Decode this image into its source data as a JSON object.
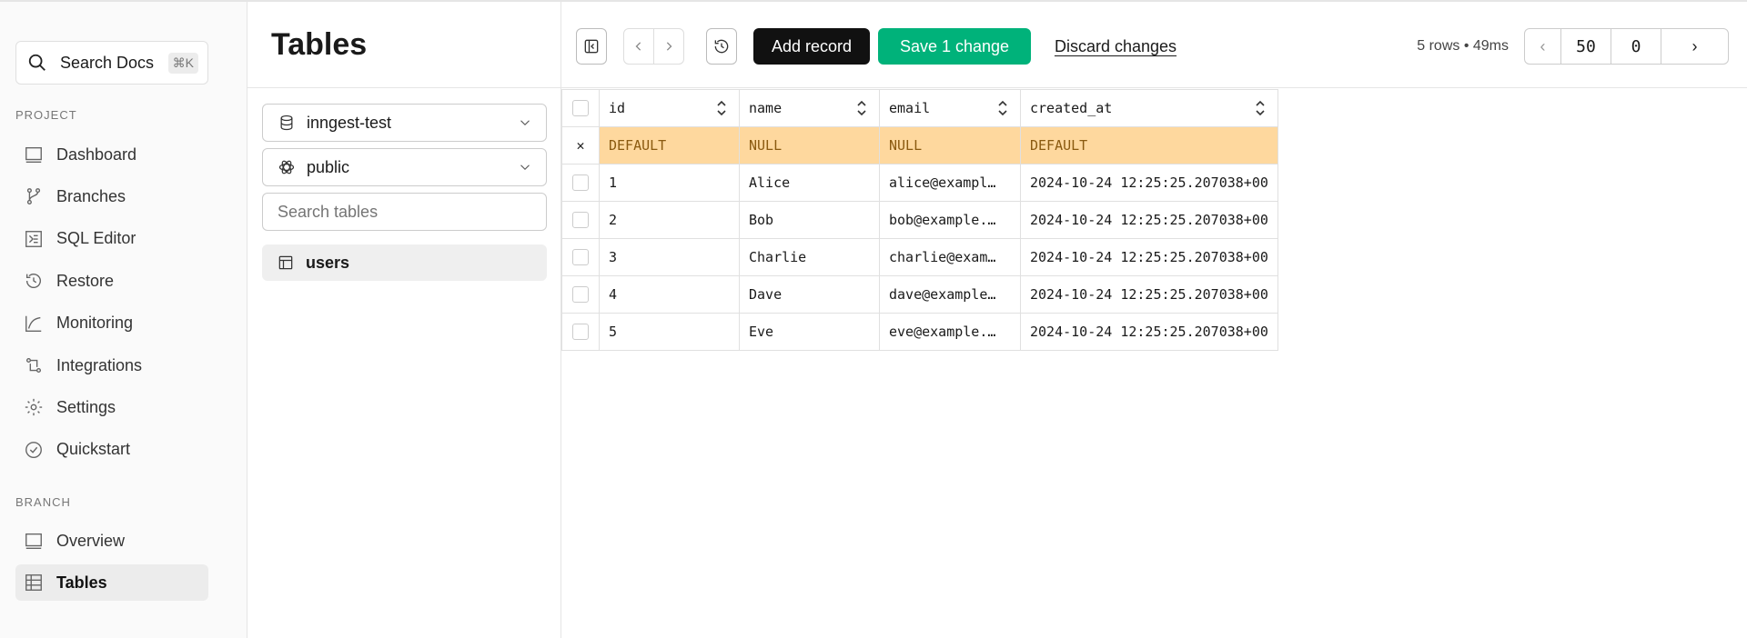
{
  "sidebar": {
    "search": {
      "label": "Search Docs",
      "shortcut": "⌘K"
    },
    "project_label": "PROJECT",
    "project_items": [
      {
        "label": "Dashboard",
        "icon": "dashboard-icon"
      },
      {
        "label": "Branches",
        "icon": "branch-icon"
      },
      {
        "label": "SQL Editor",
        "icon": "terminal-icon"
      },
      {
        "label": "Restore",
        "icon": "history-icon"
      },
      {
        "label": "Monitoring",
        "icon": "chart-icon"
      },
      {
        "label": "Integrations",
        "icon": "integrations-icon"
      },
      {
        "label": "Settings",
        "icon": "gear-icon"
      },
      {
        "label": "Quickstart",
        "icon": "check-circle-icon"
      }
    ],
    "branch_label": "BRANCH",
    "branch_items": [
      {
        "label": "Overview",
        "icon": "overview-icon"
      },
      {
        "label": "Tables",
        "icon": "table-icon",
        "selected": true
      }
    ]
  },
  "panel": {
    "title": "Tables",
    "database": "inngest-test",
    "schema": "public",
    "search_placeholder": "Search tables",
    "tables": [
      "users"
    ]
  },
  "toolbar": {
    "add_record": "Add record",
    "save": "Save 1 change",
    "discard": "Discard changes",
    "status": "5 rows • 49ms",
    "limit": "50",
    "offset": "0",
    "colors": {
      "save": "#00b27a",
      "add": "#111111",
      "pending_row": "#fed89e"
    }
  },
  "grid": {
    "columns": [
      "id",
      "name",
      "email",
      "created_at"
    ],
    "new_row": [
      "DEFAULT",
      "NULL",
      "NULL",
      "DEFAULT"
    ],
    "rows": [
      [
        "1",
        "Alice",
        "alice@exampl…",
        "2024-10-24 12:25:25.207038+00"
      ],
      [
        "2",
        "Bob",
        "bob@example.…",
        "2024-10-24 12:25:25.207038+00"
      ],
      [
        "3",
        "Charlie",
        "charlie@exam…",
        "2024-10-24 12:25:25.207038+00"
      ],
      [
        "4",
        "Dave",
        "dave@example…",
        "2024-10-24 12:25:25.207038+00"
      ],
      [
        "5",
        "Eve",
        "eve@example.…",
        "2024-10-24 12:25:25.207038+00"
      ]
    ]
  }
}
